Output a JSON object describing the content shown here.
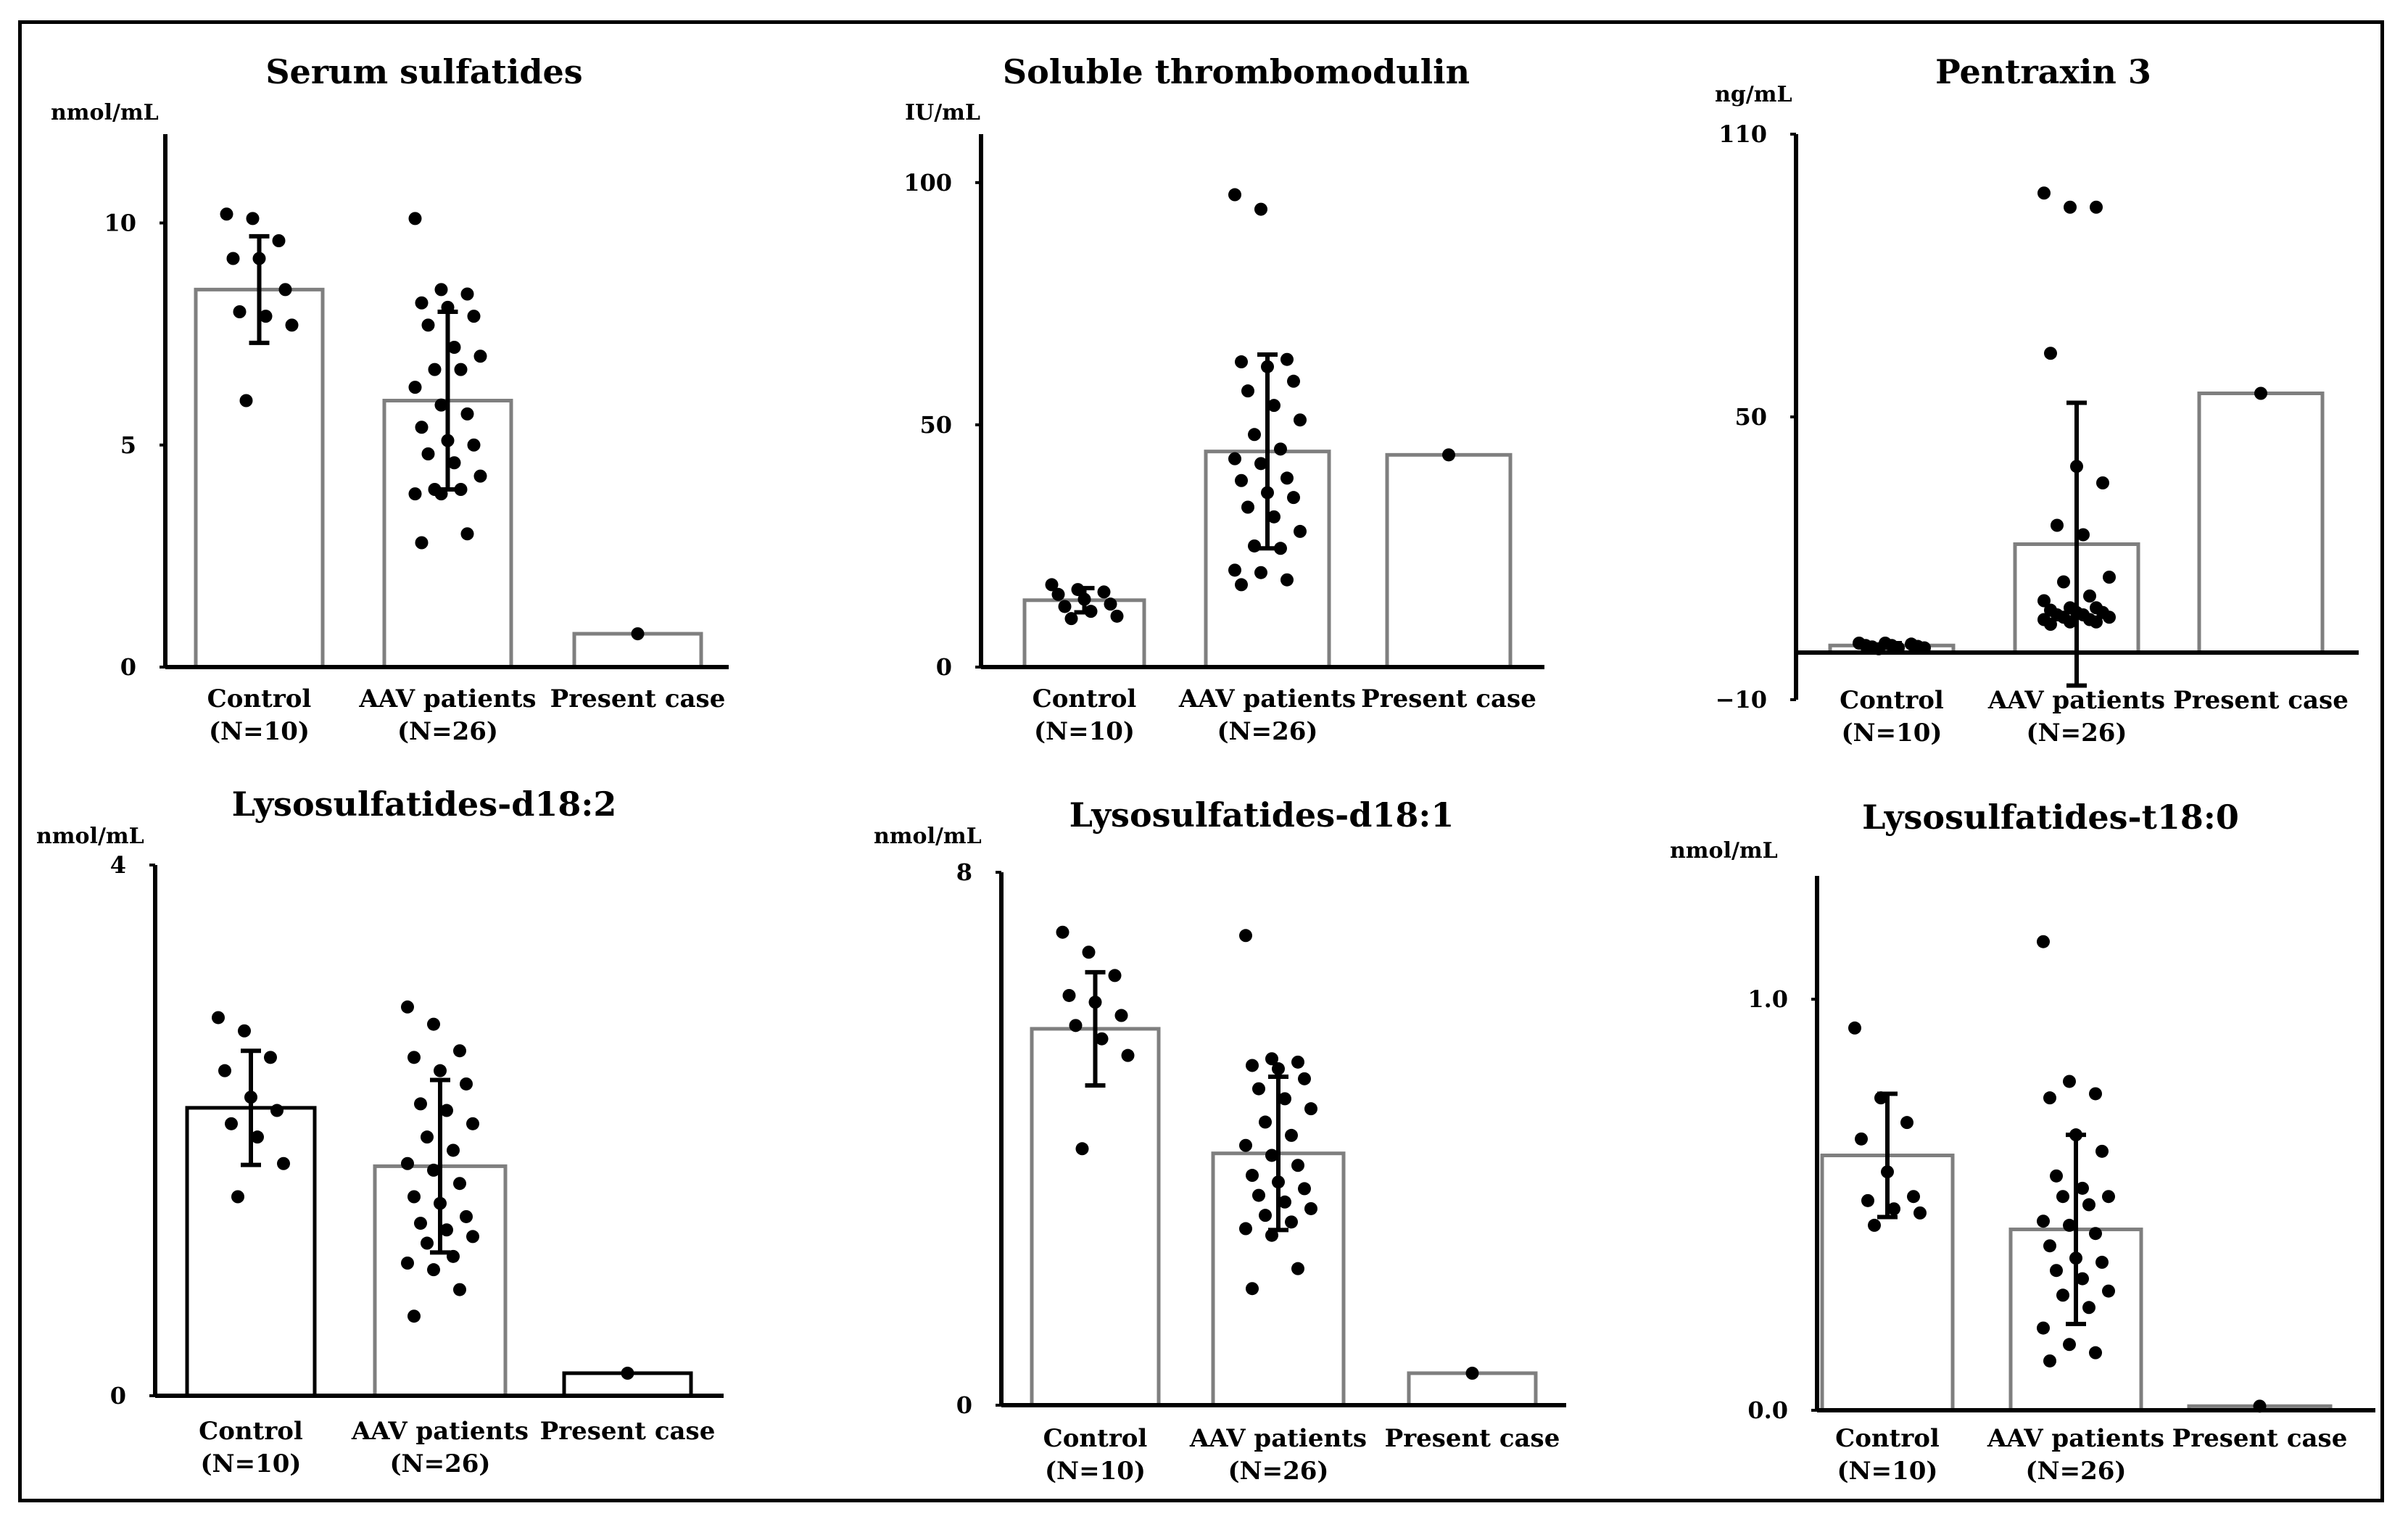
{
  "figure": {
    "description_hidden": ""
  },
  "chart_data": [
    {
      "type": "bar",
      "title": "Serum sulfatides",
      "ylabel": "nmol/mL",
      "ylim": [
        0,
        12
      ],
      "yticks": [
        0,
        5,
        10
      ],
      "ytick_labels": [
        "0",
        "5",
        "10"
      ],
      "categories": [
        {
          "line1": "Control",
          "line2": "(N=10)"
        },
        {
          "line1": "AAV patients",
          "line2": "(N=26)"
        },
        {
          "line1": "Present case",
          "line2": ""
        }
      ],
      "bar_colors": [
        "#7f7f7f",
        "#7f7f7f",
        "#7f7f7f"
      ],
      "values": [
        8.5,
        6.0,
        0.75
      ],
      "errors": [
        1.2,
        2.0,
        null
      ],
      "points": [
        [
          10.2,
          10.1,
          9.6,
          9.2,
          9.2,
          8.5,
          8.0,
          7.9,
          7.7,
          6.0
        ],
        [
          10.1,
          8.5,
          8.4,
          8.2,
          8.1,
          7.9,
          7.7,
          7.2,
          7.0,
          6.7,
          6.7,
          6.3,
          5.9,
          5.7,
          5.4,
          5.1,
          5.0,
          4.8,
          4.6,
          4.3,
          4.0,
          4.0,
          3.9,
          3.9,
          3.0,
          2.8
        ],
        [
          0.75
        ]
      ]
    },
    {
      "type": "bar",
      "title": "Soluble thrombomodulin",
      "ylabel": "IU/mL",
      "ylim": [
        0,
        110
      ],
      "yticks": [
        0,
        50,
        100
      ],
      "ytick_labels": [
        "0",
        "50",
        "100"
      ],
      "categories": [
        {
          "line1": "Control",
          "line2": "(N=10)"
        },
        {
          "line1": "AAV patients",
          "line2": "(N=26)"
        },
        {
          "line1": "Present case",
          "line2": ""
        }
      ],
      "bar_colors": [
        "#7f7f7f",
        "#7f7f7f",
        "#7f7f7f"
      ],
      "values": [
        13.8,
        44.5,
        43.8
      ],
      "errors": [
        2.5,
        20.0,
        null
      ],
      "points": [
        [
          17.0,
          16.0,
          15.5,
          15.0,
          14.0,
          13.0,
          12.5,
          11.5,
          10.5,
          10.0
        ],
        [
          97.5,
          94.5,
          63.5,
          63.0,
          62.0,
          59.0,
          57.0,
          54.0,
          51.0,
          48.0,
          45.0,
          43.0,
          42.0,
          39.0,
          38.5,
          36.0,
          35.0,
          33.0,
          31.0,
          28.0,
          25.0,
          24.5,
          20.0,
          19.5,
          18.0,
          17.0
        ],
        [
          43.8
        ]
      ]
    },
    {
      "type": "bar",
      "title": "Pentraxin 3",
      "ylabel": "ng/mL",
      "ylim": [
        -10,
        110
      ],
      "yticks": [
        -10,
        50,
        110
      ],
      "ytick_labels": [
        "−10",
        "50",
        "110"
      ],
      "categories": [
        {
          "line1": "Control",
          "line2": "(N=10)"
        },
        {
          "line1": "AAV patients",
          "line2": "(N=26)"
        },
        {
          "line1": "Present case",
          "line2": ""
        }
      ],
      "bar_colors": [
        "#7f7f7f",
        "#7f7f7f",
        "#7f7f7f"
      ],
      "values": [
        1.5,
        23.0,
        55.0
      ],
      "errors": [
        0.5,
        30.0,
        null
      ],
      "points": [
        [
          2.0,
          2.0,
          1.8,
          1.5,
          1.5,
          1.3,
          1.2,
          1.0,
          1.0,
          0.8
        ],
        [
          97.5,
          94.5,
          94.5,
          63.5,
          39.5,
          36.0,
          27.0,
          25.0,
          16.0,
          15.0,
          12.0,
          11.0,
          9.5,
          9.5,
          9.0,
          8.5,
          8.5,
          8.0,
          8.0,
          7.5,
          7.5,
          7.0,
          7.0,
          6.5,
          6.5,
          6.0
        ],
        [
          55.0
        ]
      ]
    },
    {
      "type": "bar",
      "title": "Lysosulfatides-d18:2",
      "ylabel": "nmol/mL",
      "ylim": [
        0,
        4
      ],
      "yticks": [
        0,
        4
      ],
      "ytick_labels": [
        "0",
        "4"
      ],
      "categories": [
        {
          "line1": "Control",
          "line2": "(N=10)"
        },
        {
          "line1": "AAV patients",
          "line2": "(N=26)"
        },
        {
          "line1": "Present case",
          "line2": ""
        }
      ],
      "bar_colors": [
        "#000000",
        "#7f7f7f",
        "#000000"
      ],
      "values": [
        2.17,
        1.73,
        0.17
      ],
      "errors": [
        0.43,
        0.65,
        null
      ],
      "points": [
        [
          2.85,
          2.75,
          2.55,
          2.45,
          2.25,
          2.15,
          2.05,
          1.95,
          1.75,
          1.5
        ],
        [
          2.93,
          2.8,
          2.6,
          2.55,
          2.45,
          2.35,
          2.2,
          2.15,
          2.05,
          1.95,
          1.85,
          1.75,
          1.7,
          1.6,
          1.5,
          1.45,
          1.35,
          1.3,
          1.25,
          1.2,
          1.15,
          1.05,
          1.0,
          0.95,
          0.8,
          0.6
        ],
        [
          0.17
        ]
      ]
    },
    {
      "type": "bar",
      "title": "Lysosulfatides-d18:1",
      "ylabel": "nmol/mL",
      "ylim": [
        0,
        8
      ],
      "yticks": [
        0,
        8
      ],
      "ytick_labels": [
        "0",
        "8"
      ],
      "categories": [
        {
          "line1": "Control",
          "line2": "(N=10)"
        },
        {
          "line1": "AAV patients",
          "line2": "(N=26)"
        },
        {
          "line1": "Present case",
          "line2": ""
        }
      ],
      "bar_colors": [
        "#7f7f7f",
        "#7f7f7f",
        "#7f7f7f"
      ],
      "values": [
        5.65,
        3.78,
        0.48
      ],
      "errors": [
        0.85,
        1.15,
        null
      ],
      "points": [
        [
          7.1,
          6.8,
          6.45,
          6.15,
          6.05,
          5.85,
          5.7,
          5.5,
          5.25,
          3.85
        ],
        [
          7.05,
          5.2,
          5.15,
          5.1,
          5.05,
          4.9,
          4.75,
          4.6,
          4.45,
          4.25,
          4.05,
          3.9,
          3.75,
          3.6,
          3.45,
          3.35,
          3.25,
          3.15,
          3.05,
          2.95,
          2.85,
          2.75,
          2.65,
          2.55,
          2.05,
          1.75
        ],
        [
          0.48
        ]
      ]
    },
    {
      "type": "bar",
      "title": "Lysosulfatides-t18:0",
      "ylabel": "nmol/mL",
      "ylim": [
        0,
        1.3
      ],
      "yticks": [
        0,
        1
      ],
      "ytick_labels": [
        "0.0",
        "1.0"
      ],
      "categories": [
        {
          "line1": "Control",
          "line2": "(N=10)"
        },
        {
          "line1": "AAV patients",
          "line2": "(N=26)"
        },
        {
          "line1": "Present case",
          "line2": ""
        }
      ],
      "bar_colors": [
        "#7f7f7f",
        "#7f7f7f",
        "#7f7f7f"
      ],
      "values": [
        0.62,
        0.44,
        0.01
      ],
      "errors": [
        0.15,
        0.23,
        null
      ],
      "points": [
        [
          0.93,
          0.76,
          0.7,
          0.66,
          0.58,
          0.52,
          0.51,
          0.49,
          0.48,
          0.45
        ],
        [
          1.14,
          0.8,
          0.77,
          0.76,
          0.67,
          0.63,
          0.57,
          0.54,
          0.52,
          0.52,
          0.5,
          0.46,
          0.45,
          0.43,
          0.4,
          0.37,
          0.36,
          0.34,
          0.32,
          0.29,
          0.28,
          0.25,
          0.2,
          0.16,
          0.14,
          0.12
        ],
        [
          0.01
        ]
      ]
    }
  ]
}
